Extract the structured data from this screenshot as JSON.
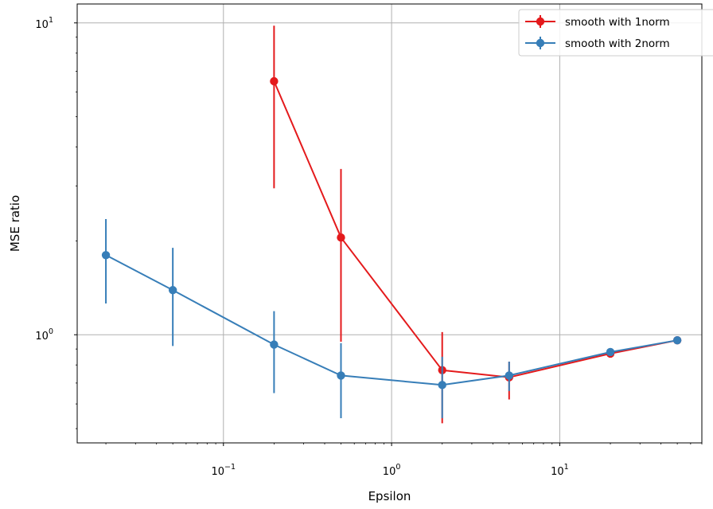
{
  "chart_data": {
    "type": "line",
    "title": "",
    "xlabel": "Epsilon",
    "ylabel": "MSE ratio",
    "xscale": "log",
    "yscale": "log",
    "xlim": [
      0.0135,
      70
    ],
    "ylim": [
      0.45,
      11.5
    ],
    "grid": true,
    "legend_position": "top-right",
    "x_ticks": [
      {
        "value": 0.1,
        "base": "10",
        "exp": "−1"
      },
      {
        "value": 1,
        "base": "10",
        "exp": "0"
      },
      {
        "value": 10,
        "base": "10",
        "exp": "1"
      }
    ],
    "y_ticks": [
      {
        "value": 1,
        "base": "10",
        "exp": "0"
      },
      {
        "value": 10,
        "base": "10",
        "exp": "1"
      }
    ],
    "series": [
      {
        "name": "smooth with 1norm",
        "color": "#e41a1c",
        "x": [
          0.2,
          0.5,
          2,
          5,
          20,
          50
        ],
        "y": [
          6.5,
          2.05,
          0.77,
          0.73,
          0.87,
          0.96
        ],
        "err_low": [
          2.95,
          0.95,
          0.52,
          0.62,
          0.85,
          0.95
        ],
        "err_high": [
          9.8,
          3.4,
          1.02,
          0.82,
          0.89,
          0.97
        ]
      },
      {
        "name": "smooth with 2norm",
        "color": "#377eb8",
        "x": [
          0.02,
          0.05,
          0.2,
          0.5,
          2,
          5,
          20,
          50
        ],
        "y": [
          1.8,
          1.39,
          0.93,
          0.74,
          0.69,
          0.74,
          0.88,
          0.96
        ],
        "err_low": [
          1.26,
          0.92,
          0.65,
          0.54,
          0.54,
          0.66,
          0.86,
          0.95
        ],
        "err_high": [
          2.35,
          1.9,
          1.19,
          0.94,
          0.85,
          0.82,
          0.9,
          0.97
        ]
      }
    ]
  }
}
